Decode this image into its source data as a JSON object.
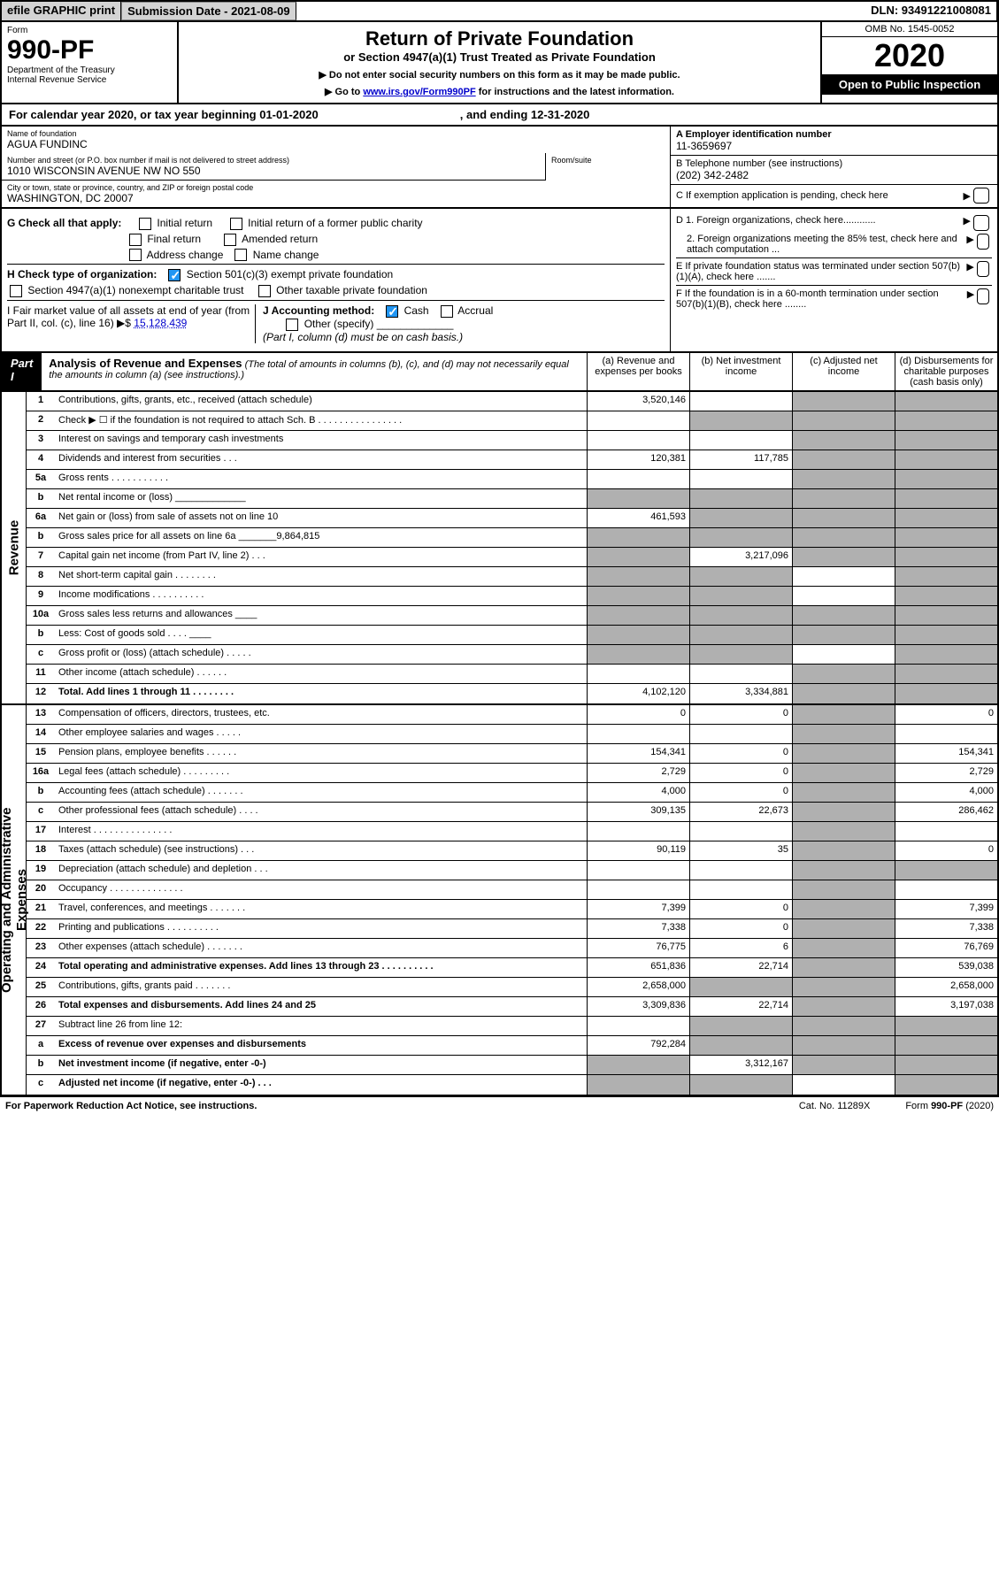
{
  "topbar": {
    "efile": "efile GRAPHIC print",
    "submission": "Submission Date - 2021-08-09",
    "dln": "DLN: 93491221008081"
  },
  "header": {
    "form": "Form",
    "formnum": "990-PF",
    "dept": "Department of the Treasury",
    "irs": "Internal Revenue Service",
    "title": "Return of Private Foundation",
    "subtitle": "or Section 4947(a)(1) Trust Treated as Private Foundation",
    "note1": "▶ Do not enter social security numbers on this form as it may be made public.",
    "note2": "▶ Go to ",
    "link": "www.irs.gov/Form990PF",
    "note3": " for instructions and the latest information.",
    "omb": "OMB No. 1545-0052",
    "year": "2020",
    "open": "Open to Public Inspection"
  },
  "calyear": {
    "p1": "For calendar year 2020, or tax year beginning 01-01-2020",
    "p2": ", and ending 12-31-2020"
  },
  "info": {
    "name_lbl": "Name of foundation",
    "name": "AGUA FUNDINC",
    "addr_lbl": "Number and street (or P.O. box number if mail is not delivered to street address)",
    "addr": "1010 WISCONSIN AVENUE NW NO 550",
    "room_lbl": "Room/suite",
    "city_lbl": "City or town, state or province, country, and ZIP or foreign postal code",
    "city": "WASHINGTON, DC  20007",
    "ein_lbl": "A Employer identification number",
    "ein": "11-3659697",
    "tel_lbl": "B Telephone number (see instructions)",
    "tel": "(202) 342-2482",
    "c_lbl": "C If exemption application is pending, check here"
  },
  "checks": {
    "g": "G Check all that apply:",
    "g1": "Initial return",
    "g2": "Initial return of a former public charity",
    "g3": "Final return",
    "g4": "Amended return",
    "g5": "Address change",
    "g6": "Name change",
    "h": "H Check type of organization:",
    "h1": "Section 501(c)(3) exempt private foundation",
    "h2": "Section 4947(a)(1) nonexempt charitable trust",
    "h3": "Other taxable private foundation",
    "i": "I Fair market value of all assets at end of year (from Part II, col. (c), line 16) ▶$",
    "i_val": "15,128,439",
    "j": "J Accounting method:",
    "j1": "Cash",
    "j2": "Accrual",
    "j3": "Other (specify)",
    "j_note": "(Part I, column (d) must be on cash basis.)",
    "d1": "D 1. Foreign organizations, check here............",
    "d2": "2. Foreign organizations meeting the 85% test, check here and attach computation ...",
    "e": "E  If private foundation status was terminated under section 507(b)(1)(A), check here .......",
    "f": "F  If the foundation is in a 60-month termination under section 507(b)(1)(B), check here ........"
  },
  "part1": {
    "tag": "Part I",
    "title": "Analysis of Revenue and Expenses",
    "note": "(The total of amounts in columns (b), (c), and (d) may not necessarily equal the amounts in column (a) (see instructions).)",
    "colA": "(a)   Revenue and expenses per books",
    "colB": "(b)  Net investment income",
    "colC": "(c)  Adjusted net income",
    "colD": "(d)  Disbursements for charitable purposes (cash basis only)"
  },
  "revenue_label": "Revenue",
  "expense_label": "Operating and Administrative Expenses",
  "rows": [
    {
      "n": "1",
      "d": "Contributions, gifts, grants, etc., received (attach schedule)",
      "a": "3,520,146",
      "bg": "",
      "cg": "g",
      "dg": "g"
    },
    {
      "n": "2",
      "d": "Check ▶ ☐ if the foundation is not required to attach Sch. B   .  .  .  .  .  .  .  .  .  .  .  .  .  .  .  .",
      "bg": "g",
      "cg": "g",
      "dg": "g"
    },
    {
      "n": "3",
      "d": "Interest on savings and temporary cash investments",
      "cg": "g",
      "dg": "g"
    },
    {
      "n": "4",
      "d": "Dividends and interest from securities    .   .   .",
      "a": "120,381",
      "b": "117,785",
      "cg": "g",
      "dg": "g"
    },
    {
      "n": "5a",
      "d": "Gross rents    .    .    .    .    .    .    .    .    .    .    .",
      "cg": "g",
      "dg": "g"
    },
    {
      "n": "b",
      "d": "Net rental income or (loss)  _____________",
      "ag": "g",
      "bg": "g",
      "cg": "g",
      "dg": "g"
    },
    {
      "n": "6a",
      "d": "Net gain or (loss) from sale of assets not on line 10",
      "a": "461,593",
      "bg": "g",
      "cg": "g",
      "dg": "g"
    },
    {
      "n": "b",
      "d": "Gross sales price for all assets on line 6a _______9,864,815",
      "ag": "g",
      "bg": "g",
      "cg": "g",
      "dg": "g"
    },
    {
      "n": "7",
      "d": "Capital gain net income (from Part IV, line 2)    .   .   .",
      "ag": "g",
      "b": "3,217,096",
      "cg": "g",
      "dg": "g"
    },
    {
      "n": "8",
      "d": "Net short-term capital gain   .   .   .   .   .   .   .   .",
      "ag": "g",
      "bg": "g",
      "dg": "g"
    },
    {
      "n": "9",
      "d": "Income modifications  .   .   .   .   .   .   .   .   .   .",
      "ag": "g",
      "bg": "g",
      "dg": "g"
    },
    {
      "n": "10a",
      "d": "Gross sales less returns and allowances  ____",
      "ag": "g",
      "bg": "g",
      "cg": "g",
      "dg": "g"
    },
    {
      "n": "b",
      "d": "Less: Cost of goods sold     .   .   .   .  ____",
      "ag": "g",
      "bg": "g",
      "cg": "g",
      "dg": "g"
    },
    {
      "n": "c",
      "d": "Gross profit or (loss) (attach schedule)   .   .   .   .   .",
      "ag": "g",
      "bg": "g",
      "dg": "g"
    },
    {
      "n": "11",
      "d": "Other income (attach schedule)    .   .   .   .   .   .",
      "cg": "g",
      "dg": "g"
    },
    {
      "n": "12",
      "d": "Total. Add lines 1 through 11    .   .   .   .   .   .   .   .",
      "bold": true,
      "a": "4,102,120",
      "b": "3,334,881",
      "cg": "g",
      "dg": "g"
    }
  ],
  "exp_rows": [
    {
      "n": "13",
      "d": "Compensation of officers, directors, trustees, etc.",
      "a": "0",
      "b": "0",
      "cg": "g",
      "dv": "0"
    },
    {
      "n": "14",
      "d": "Other employee salaries and wages    .   .   .   .   .",
      "cg": "g"
    },
    {
      "n": "15",
      "d": "Pension plans, employee benefits   .   .   .   .   .   .",
      "a": "154,341",
      "b": "0",
      "cg": "g",
      "dv": "154,341"
    },
    {
      "n": "16a",
      "d": "Legal fees (attach schedule)  .   .   .   .   .   .   .   .   .",
      "a": "2,729",
      "b": "0",
      "cg": "g",
      "dv": "2,729"
    },
    {
      "n": "b",
      "d": "Accounting fees (attach schedule)  .   .   .   .   .   .   .",
      "a": "4,000",
      "b": "0",
      "cg": "g",
      "dv": "4,000"
    },
    {
      "n": "c",
      "d": "Other professional fees (attach schedule)    .   .   .   .",
      "a": "309,135",
      "b": "22,673",
      "cg": "g",
      "dv": "286,462"
    },
    {
      "n": "17",
      "d": "Interest   .   .   .   .   .   .   .   .   .   .   .   .   .   .   .",
      "cg": "g"
    },
    {
      "n": "18",
      "d": "Taxes (attach schedule) (see instructions)    .   .   .",
      "a": "90,119",
      "b": "35",
      "cg": "g",
      "dv": "0"
    },
    {
      "n": "19",
      "d": "Depreciation (attach schedule) and depletion    .   .   .",
      "cg": "g",
      "dg": "g"
    },
    {
      "n": "20",
      "d": "Occupancy  .   .   .   .   .   .   .   .   .   .   .   .   .   .",
      "cg": "g"
    },
    {
      "n": "21",
      "d": "Travel, conferences, and meetings  .   .   .   .   .   .   .",
      "a": "7,399",
      "b": "0",
      "cg": "g",
      "dv": "7,399"
    },
    {
      "n": "22",
      "d": "Printing and publications  .   .   .   .   .   .   .   .   .   .",
      "a": "7,338",
      "b": "0",
      "cg": "g",
      "dv": "7,338"
    },
    {
      "n": "23",
      "d": "Other expenses (attach schedule)   .   .   .   .   .   .   .",
      "a": "76,775",
      "b": "6",
      "cg": "g",
      "dv": "76,769"
    },
    {
      "n": "24",
      "d": "Total operating and administrative expenses. Add lines 13 through 23   .   .   .   .   .   .   .   .   .   .",
      "bold": true,
      "a": "651,836",
      "b": "22,714",
      "cg": "g",
      "dv": "539,038"
    },
    {
      "n": "25",
      "d": "Contributions, gifts, grants paid     .   .   .   .   .   .   .",
      "a": "2,658,000",
      "bg": "g",
      "cg": "g",
      "dv": "2,658,000"
    },
    {
      "n": "26",
      "d": "Total expenses and disbursements. Add lines 24 and 25",
      "bold": true,
      "a": "3,309,836",
      "b": "22,714",
      "cg": "g",
      "dv": "3,197,038"
    },
    {
      "n": "27",
      "d": "Subtract line 26 from line 12:",
      "bg": "g",
      "cg": "g",
      "dg": "g"
    },
    {
      "n": "a",
      "d": "Excess of revenue over expenses and disbursements",
      "bold": true,
      "a": "792,284",
      "bg": "g",
      "cg": "g",
      "dg": "g"
    },
    {
      "n": "b",
      "d": "Net investment income (if negative, enter -0-)",
      "bold": true,
      "ag": "g",
      "b": "3,312,167",
      "cg": "g",
      "dg": "g"
    },
    {
      "n": "c",
      "d": "Adjusted net income (if negative, enter -0-)   .   .   .",
      "bold": true,
      "ag": "g",
      "bg": "g",
      "dg": "g"
    }
  ],
  "footer": {
    "left": "For Paperwork Reduction Act Notice, see instructions.",
    "mid": "Cat. No. 11289X",
    "right": "Form 990-PF (2020)"
  }
}
